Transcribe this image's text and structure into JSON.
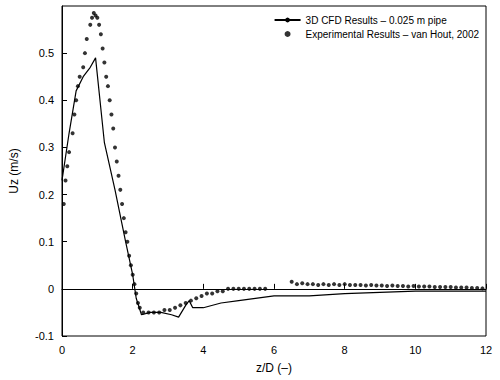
{
  "chart_data": {
    "type": "line",
    "x_label": "z/D (–)",
    "y_label": "Uz (m/s)",
    "xlim": [
      0,
      12
    ],
    "xticks": [
      0,
      2,
      4,
      6,
      8,
      10,
      12
    ],
    "ylim": [
      -0.1,
      0.6
    ],
    "yticks": [
      -0.1,
      0,
      0.1,
      0.2,
      0.3,
      0.4,
      0.5
    ],
    "grid": false,
    "legend": "upper right",
    "series": [
      {
        "name": "3D CFD Results – 0.025 m pipe",
        "type": "line",
        "color": "#000000",
        "marker": "none",
        "line_style": "solid",
        "x": [
          0,
          0.2,
          0.4,
          0.6,
          0.8,
          0.95,
          1.2,
          1.5,
          1.8,
          2.0,
          2.1,
          2.25,
          2.5,
          2.8,
          3.1,
          3.3,
          3.5,
          3.6,
          3.7,
          4.0,
          4.5,
          5.0,
          6.0,
          7.0,
          8.0,
          10,
          12
        ],
        "values": [
          0.23,
          0.33,
          0.42,
          0.45,
          0.47,
          0.49,
          0.31,
          0.21,
          0.1,
          0.03,
          -0.02,
          -0.055,
          -0.05,
          -0.05,
          -0.055,
          -0.06,
          -0.035,
          -0.025,
          -0.04,
          -0.04,
          -0.03,
          -0.025,
          -0.015,
          -0.015,
          -0.01,
          -0.005,
          -0.005
        ]
      },
      {
        "name": "Experimental Results – van Hout, 2002",
        "type": "scatter",
        "color": "#000000",
        "marker": "circle",
        "x": [
          0.05,
          0.1,
          0.15,
          0.2,
          0.3,
          0.35,
          0.4,
          0.45,
          0.5,
          0.6,
          0.65,
          0.7,
          0.8,
          0.85,
          0.9,
          0.95,
          1.0,
          1.05,
          1.1,
          1.15,
          1.2,
          1.25,
          1.3,
          1.35,
          1.4,
          1.45,
          1.5,
          1.55,
          1.6,
          1.65,
          1.7,
          1.75,
          1.8,
          1.85,
          1.9,
          1.95,
          2.0,
          2.05,
          2.1,
          2.15,
          2.2,
          2.3,
          2.45,
          2.6,
          2.75,
          2.9,
          3.05,
          3.2,
          3.35,
          3.5,
          3.65,
          3.8,
          3.95,
          4.1,
          4.25,
          4.4,
          4.55,
          4.7,
          4.85,
          5.0,
          5.15,
          5.3,
          5.45,
          5.6,
          5.75,
          6.5,
          6.65,
          6.8,
          6.95,
          7.1,
          7.25,
          7.4,
          7.55,
          7.7,
          7.85,
          8.0,
          8.15,
          8.3,
          8.45,
          8.6,
          8.75,
          8.9,
          9.05,
          9.2,
          9.35,
          9.5,
          9.65,
          9.8,
          9.95,
          10.1,
          10.25,
          10.4,
          10.55,
          10.7,
          10.85,
          11.0,
          11.15,
          11.3,
          11.45,
          11.6,
          11.75,
          11.9
        ],
        "values": [
          0.18,
          0.23,
          0.26,
          0.29,
          0.33,
          0.37,
          0.4,
          0.43,
          0.45,
          0.47,
          0.5,
          0.53,
          0.56,
          0.575,
          0.585,
          0.58,
          0.575,
          0.56,
          0.54,
          0.51,
          0.48,
          0.45,
          0.43,
          0.4,
          0.37,
          0.34,
          0.3,
          0.27,
          0.24,
          0.21,
          0.18,
          0.15,
          0.12,
          0.1,
          0.07,
          0.05,
          0.03,
          0.01,
          -0.01,
          -0.03,
          -0.04,
          -0.05,
          -0.05,
          -0.05,
          -0.05,
          -0.045,
          -0.045,
          -0.04,
          -0.035,
          -0.03,
          -0.025,
          -0.02,
          -0.015,
          -0.01,
          -0.01,
          -0.005,
          -0.005,
          0,
          0,
          0,
          0,
          0,
          0,
          0,
          0,
          0.015,
          0.01,
          0.012,
          0.01,
          0.01,
          0.008,
          0.01,
          0.008,
          0.01,
          0.008,
          0.01,
          0.008,
          0.008,
          0.008,
          0.007,
          0.008,
          0.007,
          0.007,
          0.006,
          0.007,
          0.006,
          0.006,
          0.005,
          0.006,
          0.005,
          0.005,
          0.005,
          0.004,
          0.004,
          0.004,
          0.004,
          0.003,
          0.003,
          0.003,
          0.002,
          0.002,
          0.001
        ]
      }
    ]
  }
}
